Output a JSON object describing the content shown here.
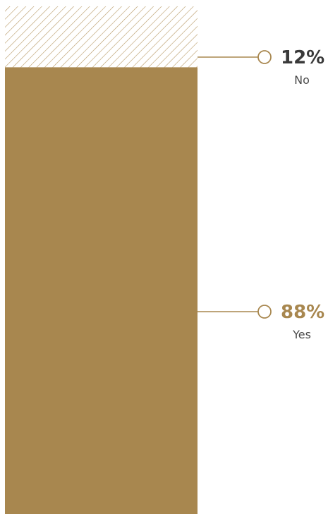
{
  "chart_data": {
    "type": "bar",
    "stacked": true,
    "categories": [
      "Yes",
      "No"
    ],
    "values": [
      88,
      12
    ],
    "value_labels": [
      "88%",
      "12%"
    ],
    "ylim": [
      0,
      100
    ],
    "grid": false,
    "colors": {
      "yes": "#a8874f",
      "no_hatch": "#b89a66",
      "leader_line": "#a8874f",
      "yes_label": "#a8874f",
      "no_label": "#3a3a3a"
    }
  }
}
